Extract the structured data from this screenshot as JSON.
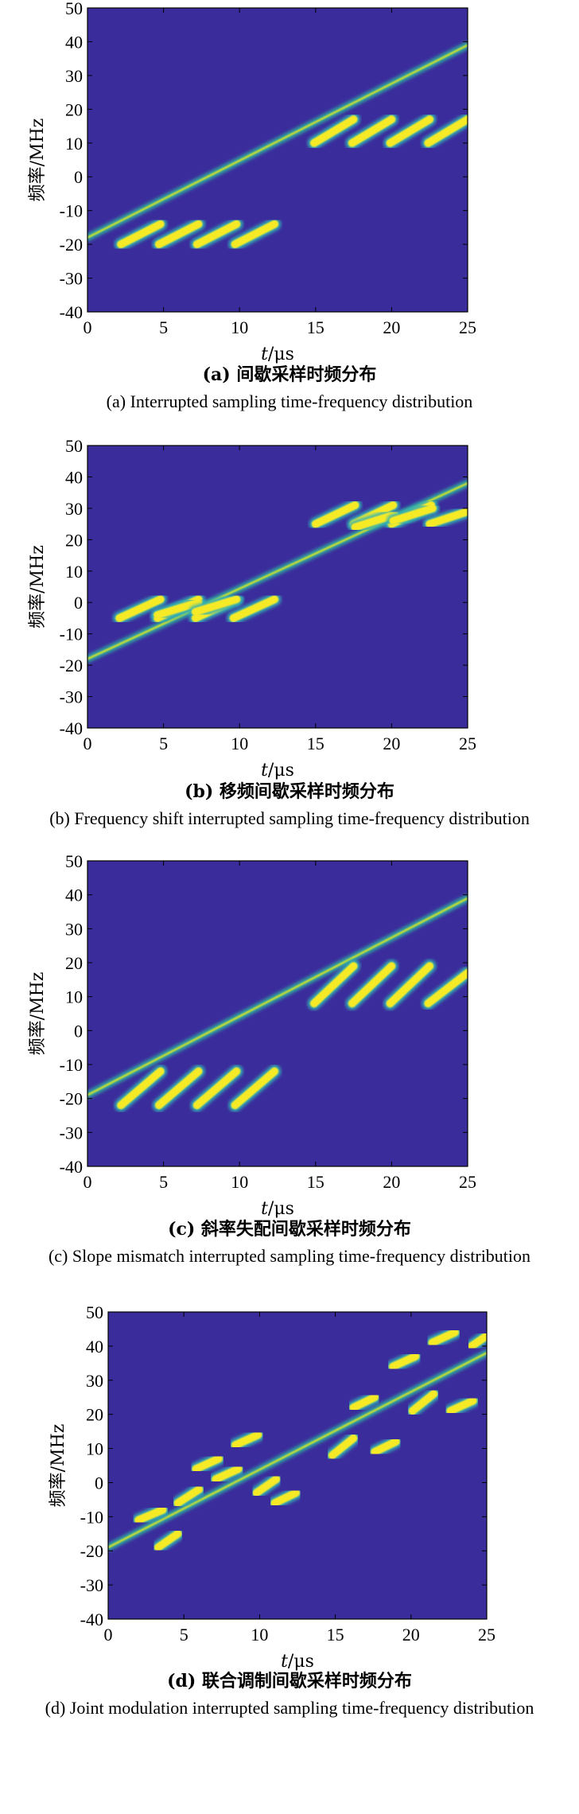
{
  "colors": {
    "background": "#3b2c9c",
    "ridge_halo": "#2fa6a0",
    "ridge_core": "#c6dc34",
    "blob_core": "#f6ea26",
    "blob_halo": "#33b0b4",
    "frame": "#000000",
    "page": "#ffffff"
  },
  "chart_data": [
    {
      "type": "heatmap",
      "panel": "a",
      "xlabel_var": "t",
      "xlabel_unit": "μs",
      "ylabel": "频率/MHz",
      "xlim": [
        0,
        25
      ],
      "ylim": [
        -40,
        50
      ],
      "xticks": [
        "0",
        "5",
        "10",
        "15",
        "20",
        "25"
      ],
      "yticks": [
        "-40",
        "-30",
        "-20",
        "-10",
        "0",
        "10",
        "20",
        "30",
        "40",
        "50"
      ],
      "caption_cn": "(a) 间歇采样时频分布",
      "caption_en": "(a) Interrupted sampling time-frequency distribution",
      "reference_chirp": {
        "t": [
          0,
          25
        ],
        "f": [
          -18,
          39
        ]
      },
      "segments": [
        {
          "t": [
            2.2,
            4.8
          ],
          "f": [
            -20,
            -14
          ]
        },
        {
          "t": [
            4.7,
            7.3
          ],
          "f": [
            -20,
            -14
          ]
        },
        {
          "t": [
            7.2,
            9.8
          ],
          "f": [
            -20,
            -14
          ]
        },
        {
          "t": [
            9.7,
            12.3
          ],
          "f": [
            -20,
            -14
          ]
        },
        {
          "t": [
            14.9,
            17.5
          ],
          "f": [
            10,
            17
          ]
        },
        {
          "t": [
            17.4,
            20.0
          ],
          "f": [
            10,
            17
          ]
        },
        {
          "t": [
            19.9,
            22.5
          ],
          "f": [
            10,
            17
          ]
        },
        {
          "t": [
            22.4,
            25.0
          ],
          "f": [
            10,
            17
          ]
        }
      ]
    },
    {
      "type": "heatmap",
      "panel": "b",
      "xlabel_var": "t",
      "xlabel_unit": "μs",
      "ylabel": "频率/MHz",
      "xlim": [
        0,
        25
      ],
      "ylim": [
        -40,
        50
      ],
      "xticks": [
        "0",
        "5",
        "10",
        "15",
        "20",
        "25"
      ],
      "yticks": [
        "-40",
        "-30",
        "-20",
        "-10",
        "0",
        "10",
        "20",
        "30",
        "40",
        "50"
      ],
      "caption_cn": "(b) 移频间歇采样时频分布",
      "caption_en": "(b) Frequency shift interrupted sampling time-frequency distribution",
      "reference_chirp": {
        "t": [
          0,
          25
        ],
        "f": [
          -18,
          38
        ]
      },
      "segments": [
        {
          "t": [
            2.1,
            4.8
          ],
          "f": [
            -5,
            1
          ]
        },
        {
          "t": [
            4.6,
            7.3
          ],
          "f": [
            -5,
            1
          ]
        },
        {
          "t": [
            7.1,
            9.8
          ],
          "f": [
            -5,
            1
          ]
        },
        {
          "t": [
            9.6,
            12.3
          ],
          "f": [
            -5,
            1
          ]
        },
        {
          "t": [
            4.6,
            7.3
          ],
          "f": [
            -4,
            0
          ]
        },
        {
          "t": [
            7.1,
            9.8
          ],
          "f": [
            -3,
            1
          ]
        },
        {
          "t": [
            15.0,
            17.6
          ],
          "f": [
            25,
            31
          ]
        },
        {
          "t": [
            17.5,
            20.1
          ],
          "f": [
            25,
            31
          ]
        },
        {
          "t": [
            20.0,
            22.6
          ],
          "f": [
            25,
            31
          ]
        },
        {
          "t": [
            22.5,
            25.0
          ],
          "f": [
            25,
            29
          ]
        },
        {
          "t": [
            17.6,
            20.2
          ],
          "f": [
            24,
            28
          ]
        },
        {
          "t": [
            20.1,
            22.7
          ],
          "f": [
            26,
            30
          ]
        }
      ]
    },
    {
      "type": "heatmap",
      "panel": "c",
      "xlabel_var": "t",
      "xlabel_unit": "μs",
      "ylabel": "频率/MHz",
      "xlim": [
        0,
        25
      ],
      "ylim": [
        -40,
        50
      ],
      "xticks": [
        "0",
        "5",
        "10",
        "15",
        "20",
        "25"
      ],
      "yticks": [
        "-40",
        "-30",
        "-20",
        "-10",
        "0",
        "10",
        "20",
        "30",
        "40",
        "50"
      ],
      "caption_cn": "(c) 斜率失配间歇采样时频分布",
      "caption_en": "(c) Slope mismatch interrupted sampling time-frequency distribution",
      "reference_chirp": {
        "t": [
          0,
          25
        ],
        "f": [
          -19,
          39
        ]
      },
      "segments": [
        {
          "t": [
            2.2,
            4.8
          ],
          "f": [
            -22,
            -12
          ]
        },
        {
          "t": [
            4.7,
            7.3
          ],
          "f": [
            -22,
            -12
          ]
        },
        {
          "t": [
            7.2,
            9.8
          ],
          "f": [
            -22,
            -12
          ]
        },
        {
          "t": [
            9.7,
            12.3
          ],
          "f": [
            -22,
            -12
          ]
        },
        {
          "t": [
            14.9,
            17.5
          ],
          "f": [
            8,
            19
          ]
        },
        {
          "t": [
            17.4,
            20.0
          ],
          "f": [
            8,
            19
          ]
        },
        {
          "t": [
            19.9,
            22.5
          ],
          "f": [
            8,
            19
          ]
        },
        {
          "t": [
            22.4,
            25.0
          ],
          "f": [
            8,
            17
          ]
        }
      ]
    },
    {
      "type": "heatmap",
      "panel": "d",
      "xlabel_var": "t",
      "xlabel_unit": "μs",
      "ylabel": "频率/MHz",
      "xlim": [
        0,
        25
      ],
      "ylim": [
        -40,
        50
      ],
      "xticks": [
        "0",
        "5",
        "10",
        "15",
        "20",
        "25"
      ],
      "yticks": [
        "-40",
        "-30",
        "-20",
        "-10",
        "0",
        "10",
        "20",
        "30",
        "40",
        "50"
      ],
      "caption_cn": "(d) 联合调制间歇采样时频分布",
      "caption_en": "(d) Joint modulation interrupted sampling time-frequency distribution",
      "reference_chirp": {
        "t": [
          0,
          25
        ],
        "f": [
          -19,
          38
        ]
      },
      "segments": [
        {
          "t": [
            2.0,
            3.6
          ],
          "f": [
            -11,
            -8
          ]
        },
        {
          "t": [
            3.3,
            4.6
          ],
          "f": [
            -19,
            -15
          ]
        },
        {
          "t": [
            4.6,
            6.0
          ],
          "f": [
            -6,
            -2
          ]
        },
        {
          "t": [
            5.8,
            7.3
          ],
          "f": [
            4,
            7
          ]
        },
        {
          "t": [
            7.1,
            8.6
          ],
          "f": [
            1,
            4
          ]
        },
        {
          "t": [
            8.4,
            9.9
          ],
          "f": [
            11,
            14
          ]
        },
        {
          "t": [
            9.8,
            11.1
          ],
          "f": [
            -3,
            1
          ]
        },
        {
          "t": [
            11.0,
            12.4
          ],
          "f": [
            -6,
            -3
          ]
        },
        {
          "t": [
            14.8,
            16.2
          ],
          "f": [
            8,
            13
          ]
        },
        {
          "t": [
            16.2,
            17.6
          ],
          "f": [
            22,
            25
          ]
        },
        {
          "t": [
            17.6,
            19.0
          ],
          "f": [
            9,
            12
          ]
        },
        {
          "t": [
            18.8,
            20.3
          ],
          "f": [
            34,
            37
          ]
        },
        {
          "t": [
            20.1,
            21.5
          ],
          "f": [
            21,
            26
          ]
        },
        {
          "t": [
            21.4,
            22.9
          ],
          "f": [
            41,
            44
          ]
        },
        {
          "t": [
            22.6,
            24.1
          ],
          "f": [
            21,
            24
          ]
        },
        {
          "t": [
            24.0,
            25.0
          ],
          "f": [
            40,
            43
          ]
        }
      ]
    }
  ]
}
